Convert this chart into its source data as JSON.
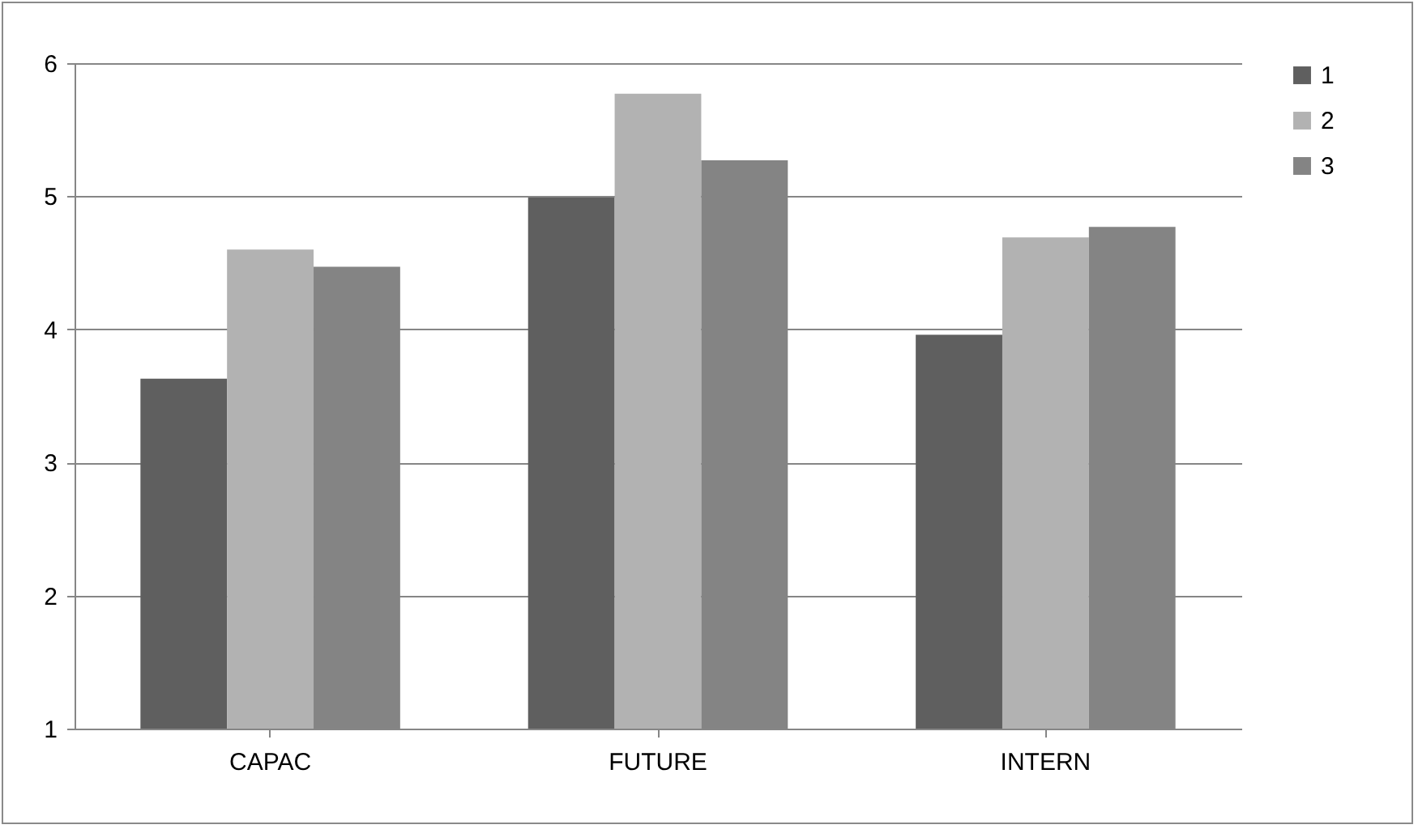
{
  "chart_data": {
    "type": "bar",
    "categories": [
      "CAPAC",
      "FUTURE",
      "INTERN"
    ],
    "series": [
      {
        "name": "1",
        "color": "#5f5f5f",
        "values": [
          3.63,
          4.99,
          3.96
        ]
      },
      {
        "name": "2",
        "color": "#b2b2b2",
        "values": [
          4.6,
          5.77,
          4.69
        ]
      },
      {
        "name": "3",
        "color": "#848484",
        "values": [
          4.47,
          5.27,
          4.77
        ]
      }
    ],
    "ylim": [
      1,
      6
    ],
    "yticks": [
      1,
      2,
      3,
      4,
      5,
      6
    ],
    "grid": "y",
    "legend": "right"
  }
}
